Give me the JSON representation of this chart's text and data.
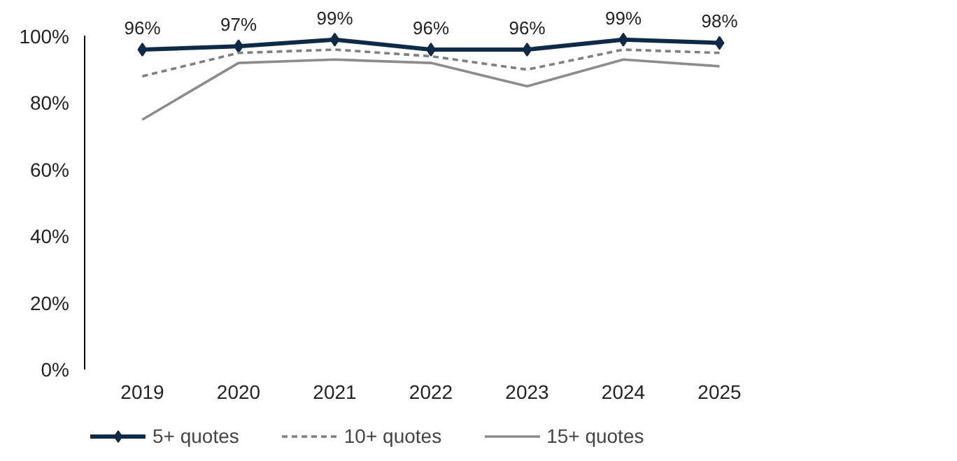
{
  "chart_data": {
    "type": "line",
    "categories": [
      "2019",
      "2020",
      "2021",
      "2022",
      "2023",
      "2024",
      "2025"
    ],
    "ylim": [
      0,
      100
    ],
    "yticks": [
      {
        "value": 0,
        "label": "0%"
      },
      {
        "value": 20,
        "label": "20%"
      },
      {
        "value": 40,
        "label": "40%"
      },
      {
        "value": 60,
        "label": "60%"
      },
      {
        "value": 80,
        "label": "80%"
      },
      {
        "value": 100,
        "label": "100%"
      }
    ],
    "grid": false,
    "legend": "bottom",
    "series": [
      {
        "name": "5+ quotes",
        "color": "#0e2a47",
        "values": [
          96,
          97,
          99,
          96,
          96,
          99,
          98
        ],
        "marker": "diamond",
        "line_style": "solid",
        "value_labels": [
          "96%",
          "97%",
          "99%",
          "96%",
          "96%",
          "99%",
          "98%"
        ]
      },
      {
        "name": "10+ quotes",
        "color": "#7f7f7f",
        "values": [
          88,
          95,
          96,
          94,
          90,
          96,
          95
        ],
        "marker": "none",
        "line_style": "dashed"
      },
      {
        "name": "15+ quotes",
        "color": "#8c8c8c",
        "values": [
          75,
          92,
          93,
          92,
          85,
          93,
          91
        ],
        "marker": "none",
        "line_style": "solid"
      }
    ]
  }
}
